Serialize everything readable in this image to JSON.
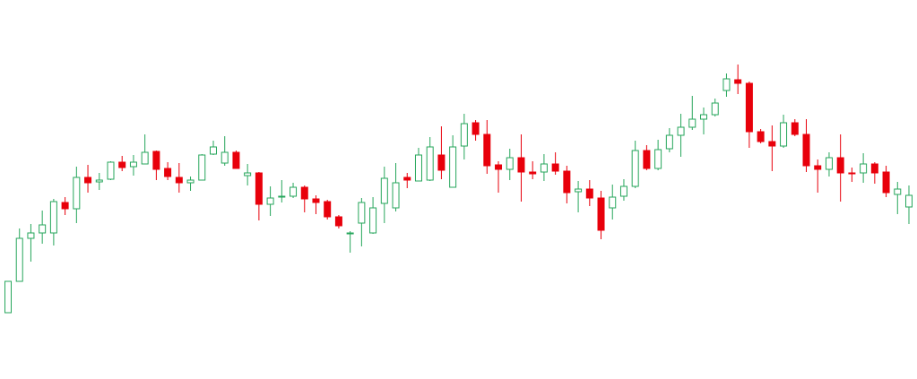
{
  "chart_data": {
    "type": "candlestick",
    "ylim": [
      0,
      423
    ],
    "up_color": "#26a65b",
    "down_color": "#e8000b",
    "open": [
      74,
      109,
      157,
      163,
      163,
      197,
      190,
      225,
      220,
      223,
      242,
      237,
      240,
      254,
      235,
      225,
      219,
      222,
      251,
      241,
      253,
      227,
      230,
      195,
      203,
      204,
      214,
      201,
      198,
      181,
      162,
      174,
      163,
      196,
      191,
      225,
      221,
      222,
      250,
      214,
      260,
      286,
      273,
      239,
      234,
      247,
      231,
      231,
      240,
      232,
      209,
      212,
      202,
      191,
      204,
      215,
      255,
      235,
      257,
      272,
      281,
      290,
      295,
      322,
      334,
      330,
      276,
      265,
      260,
      286,
      273,
      238,
      234,
      247,
      230,
      230,
      240,
      231,
      206,
      192
    ],
    "high": [
      109,
      168,
      173,
      188,
      201,
      203,
      237,
      239,
      230,
      243,
      249,
      250,
      273,
      255,
      242,
      241,
      226,
      251,
      266,
      271,
      255,
      240,
      231,
      215,
      222,
      219,
      216,
      205,
      200,
      183,
      165,
      202,
      203,
      237,
      241,
      230,
      258,
      270,
      282,
      272,
      296,
      289,
      289,
      243,
      257,
      273,
      243,
      251,
      253,
      238,
      221,
      222,
      210,
      217,
      223,
      266,
      261,
      267,
      280,
      296,
      316,
      303,
      313,
      341,
      351,
      332,
      279,
      283,
      295,
      290,
      290,
      245,
      253,
      273,
      236,
      252,
      242,
      238,
      220,
      216
    ],
    "low": [
      74,
      109,
      131,
      151,
      149,
      183,
      174,
      208,
      211,
      222,
      232,
      227,
      240,
      222,
      222,
      208,
      210,
      222,
      250,
      238,
      235,
      216,
      177,
      182,
      197,
      202,
      186,
      184,
      178,
      168,
      141,
      148,
      162,
      174,
      187,
      213,
      221,
      221,
      223,
      214,
      245,
      266,
      229,
      208,
      222,
      198,
      223,
      221,
      228,
      196,
      186,
      193,
      156,
      178,
      199,
      213,
      233,
      233,
      253,
      248,
      278,
      273,
      293,
      315,
      318,
      258,
      263,
      232,
      258,
      271,
      231,
      208,
      226,
      198,
      220,
      219,
      218,
      203,
      184,
      173
    ],
    "close": [
      109,
      157,
      163,
      172,
      198,
      190,
      225,
      219,
      222,
      242,
      236,
      242,
      253,
      234,
      226,
      219,
      222,
      250,
      259,
      253,
      235,
      230,
      195,
      202,
      204,
      214,
      201,
      197,
      181,
      171,
      163,
      197,
      191,
      224,
      219,
      222,
      250,
      259,
      233,
      259,
      285,
      273,
      238,
      234,
      247,
      231,
      229,
      240,
      232,
      208,
      212,
      202,
      166,
      203,
      215,
      255,
      235,
      256,
      272,
      281,
      290,
      295,
      308,
      335,
      330,
      276,
      265,
      260,
      286,
      273,
      238,
      234,
      247,
      230,
      229,
      240,
      230,
      208,
      212,
      205
    ]
  }
}
